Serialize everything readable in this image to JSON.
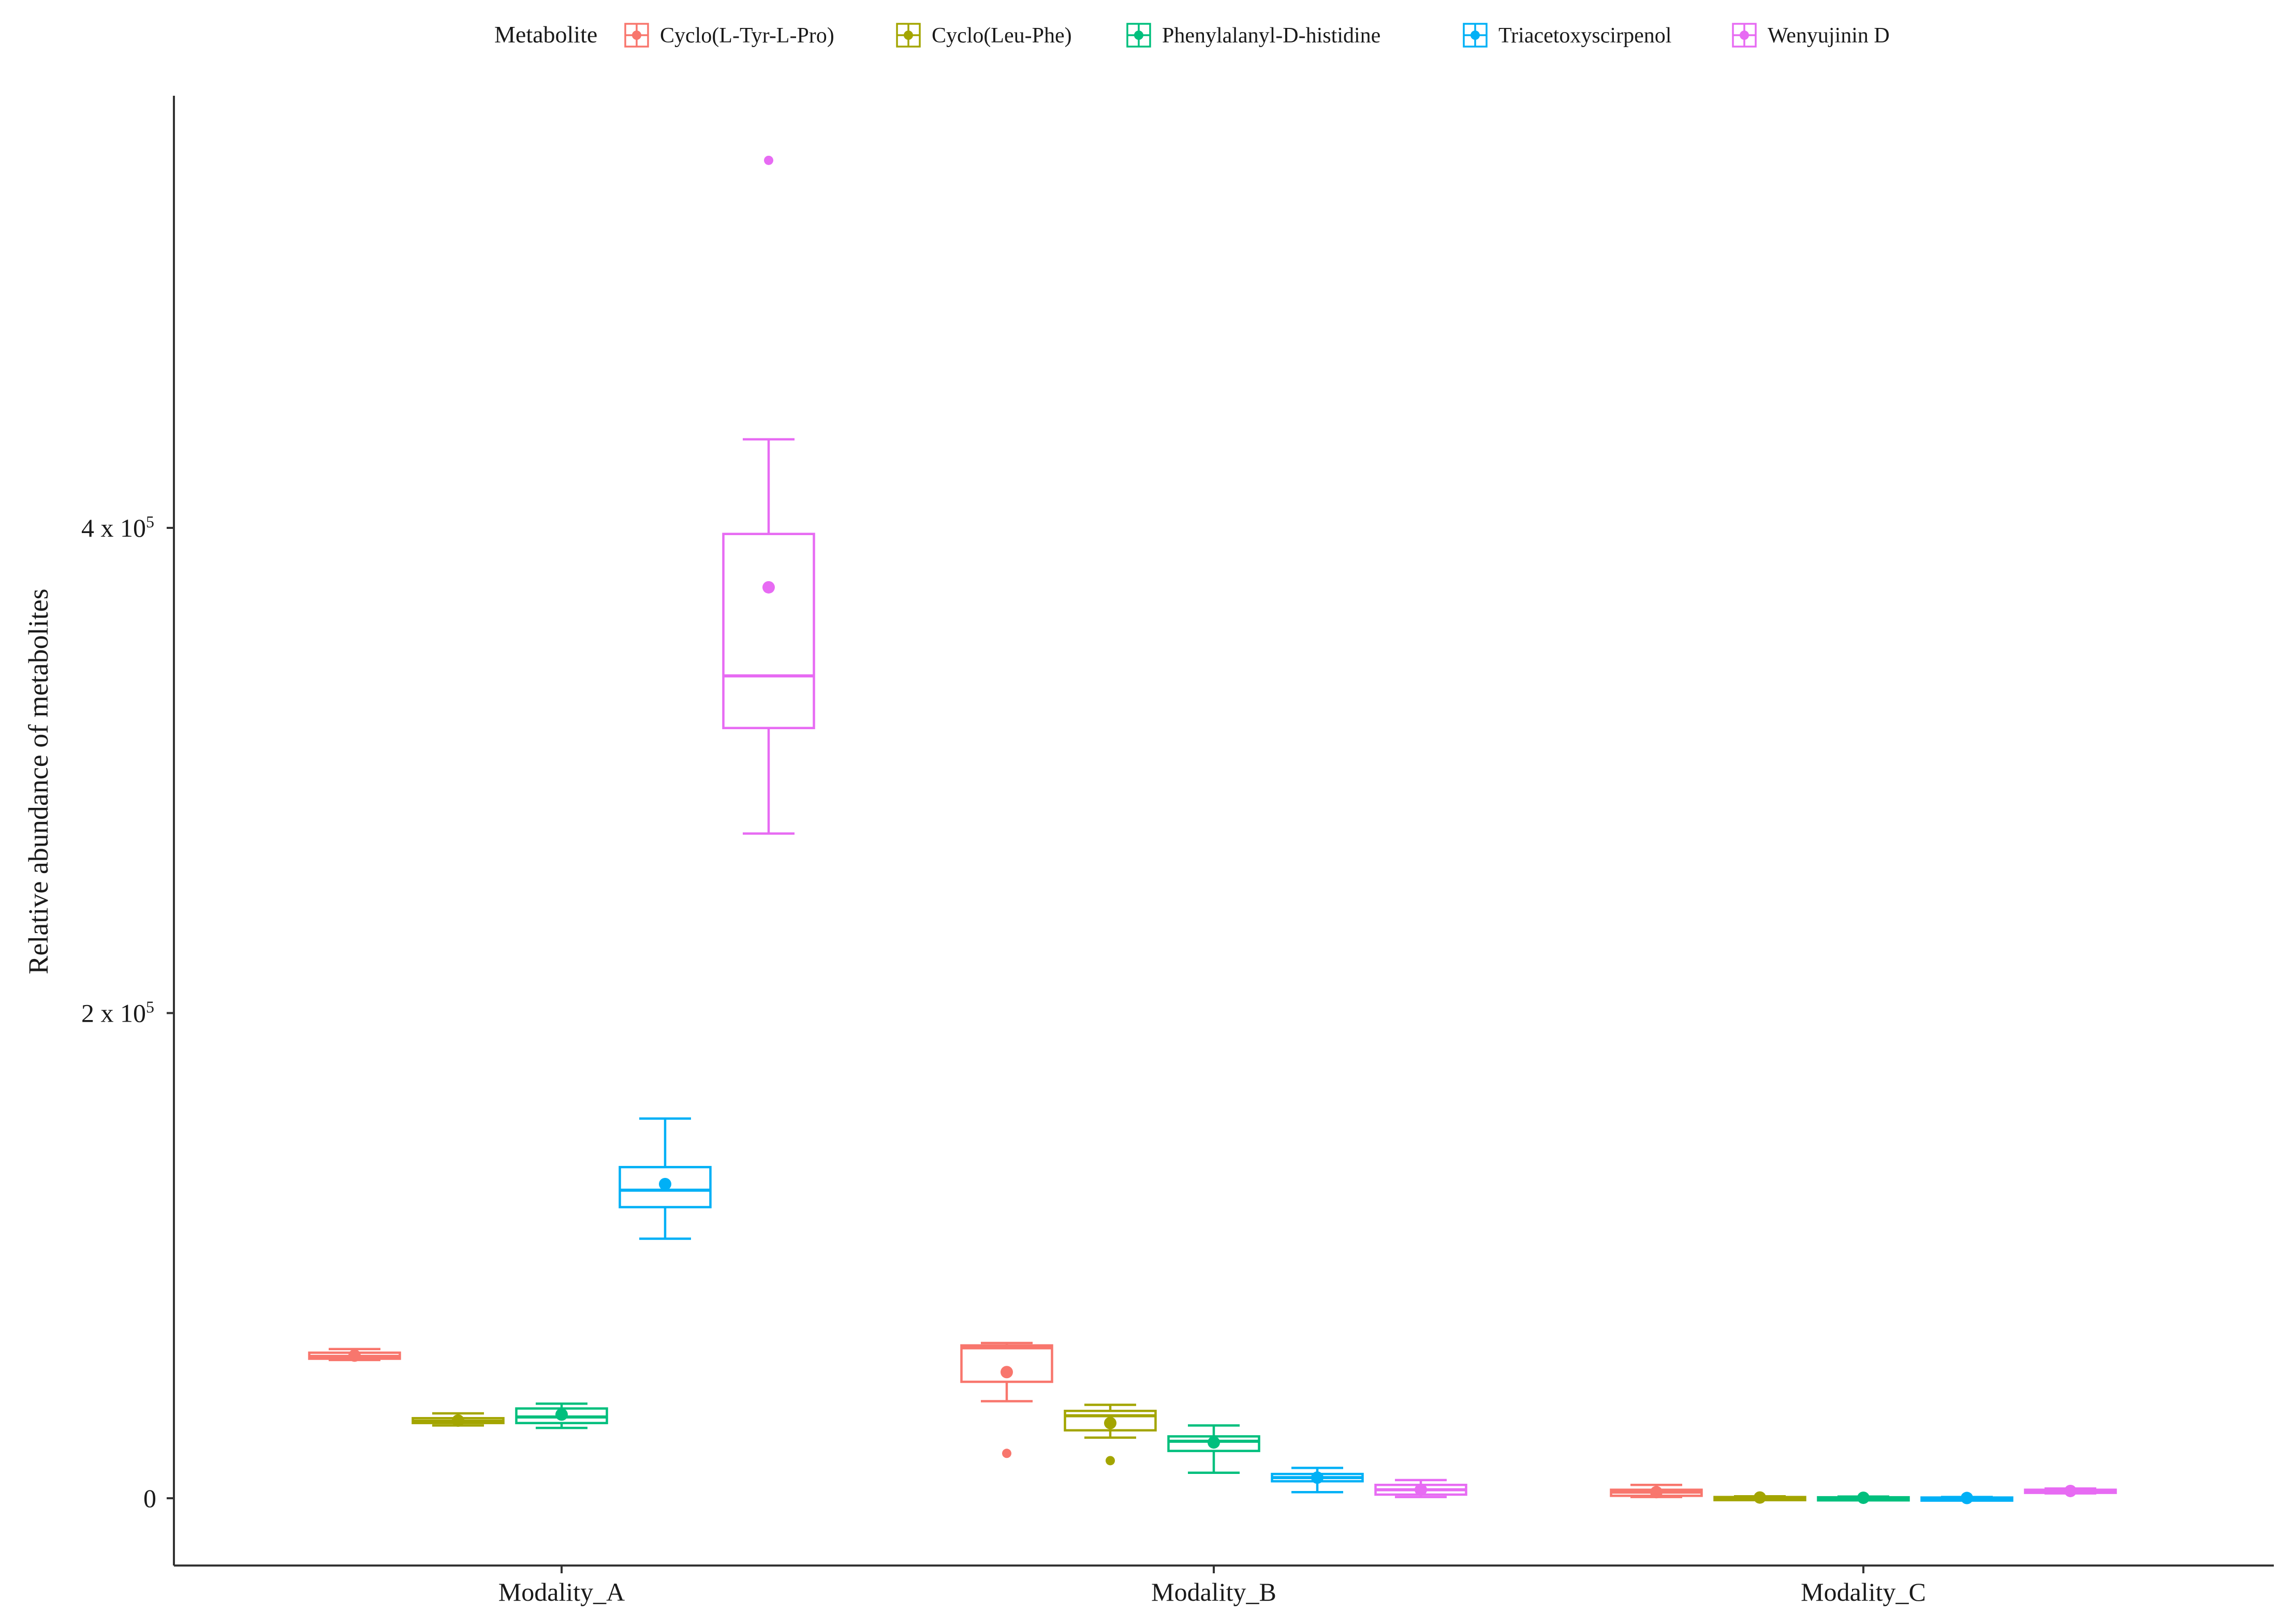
{
  "chart_data": {
    "type": "box",
    "title": "",
    "xlabel": "",
    "ylabel": "Relative abundance of metabolites",
    "ylim": [
      -28000,
      590000
    ],
    "yticks": [
      {
        "value": 0,
        "label": "0"
      },
      {
        "value": 200000,
        "label": "2 x 10"
      },
      {
        "value": 400000,
        "label": "4 x 10"
      }
    ],
    "ytick_exponent": "5",
    "categories": [
      "Modality_A",
      "Modality_B",
      "Modality_C"
    ],
    "legend": {
      "title": "Metabolite",
      "position": "top"
    },
    "grid": false,
    "series": [
      {
        "name": "Cyclo(L-Tyr-L-Pro)",
        "color": "#F8766D",
        "boxes": [
          {
            "min": 57000,
            "q1": 57500,
            "median": 58500,
            "q3": 60000,
            "max": 61500,
            "mean": 58800,
            "outliers": []
          },
          {
            "min": 40000,
            "q1": 48000,
            "median": 62000,
            "q3": 63000,
            "max": 64000,
            "mean": 52000,
            "outliers": [
              18500
            ]
          },
          {
            "min": 500,
            "q1": 1000,
            "median": 2500,
            "q3": 3500,
            "max": 5500,
            "mean": 2500,
            "outliers": []
          }
        ]
      },
      {
        "name": "Cyclo(Leu-Phe)",
        "color": "#A3A500",
        "boxes": [
          {
            "min": 30000,
            "q1": 31000,
            "median": 31800,
            "q3": 33000,
            "max": 35000,
            "mean": 32000,
            "outliers": []
          },
          {
            "min": 25000,
            "q1": 28000,
            "median": 34000,
            "q3": 36000,
            "max": 38500,
            "mean": 31000,
            "outliers": [
              15500
            ]
          },
          {
            "min": 0,
            "q1": 0,
            "median": 0,
            "q3": 500,
            "max": 800,
            "mean": 300,
            "outliers": []
          }
        ]
      },
      {
        "name": "Phenylalanyl-D-histidine",
        "color": "#00BF7D",
        "boxes": [
          {
            "min": 29000,
            "q1": 31000,
            "median": 33500,
            "q3": 37000,
            "max": 39000,
            "mean": 34500,
            "outliers": []
          },
          {
            "min": 10500,
            "q1": 19500,
            "median": 23500,
            "q3": 25500,
            "max": 30000,
            "mean": 23000,
            "outliers": []
          },
          {
            "min": 0,
            "q1": 0,
            "median": 0,
            "q3": 400,
            "max": 700,
            "mean": 200,
            "outliers": []
          }
        ]
      },
      {
        "name": "Triacetoxyscirpenol",
        "color": "#00B0F6",
        "boxes": [
          {
            "min": 107000,
            "q1": 120000,
            "median": 127000,
            "q3": 136500,
            "max": 156500,
            "mean": 129500,
            "outliers": []
          },
          {
            "min": 2500,
            "q1": 7000,
            "median": 8500,
            "q3": 10000,
            "max": 12500,
            "mean": 8500,
            "outliers": []
          },
          {
            "min": 0,
            "q1": 0,
            "median": 0,
            "q3": 300,
            "max": 500,
            "mean": 100,
            "outliers": []
          }
        ]
      },
      {
        "name": "Wenyujinin D",
        "color": "#E76BF3",
        "boxes": [
          {
            "min": 274000,
            "q1": 317500,
            "median": 339000,
            "q3": 397500,
            "max": 436500,
            "mean": 375500,
            "outliers": [
              551500
            ]
          },
          {
            "min": 500,
            "q1": 1500,
            "median": 3500,
            "q3": 5500,
            "max": 7500,
            "mean": 3500,
            "outliers": []
          },
          {
            "min": 2000,
            "q1": 2500,
            "median": 3000,
            "q3": 3500,
            "max": 4000,
            "mean": 3000,
            "outliers": []
          }
        ]
      }
    ]
  }
}
